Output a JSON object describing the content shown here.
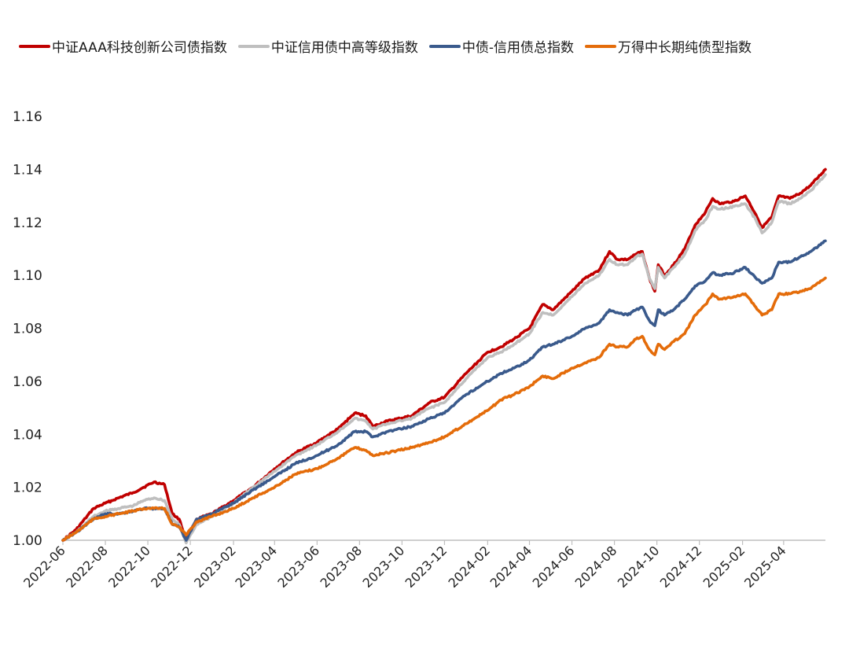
{
  "chart_data": {
    "type": "line",
    "title": "",
    "xlabel": "",
    "ylabel": "",
    "ylim": [
      1.0,
      1.16
    ],
    "yticks": [
      "1.00",
      "1.02",
      "1.04",
      "1.06",
      "1.08",
      "1.10",
      "1.12",
      "1.14",
      "1.16"
    ],
    "xlim": [
      "2022-06",
      "2025-05-31"
    ],
    "xticks": [
      "2022-06",
      "2022-08",
      "2022-10",
      "2022-12",
      "2023-02",
      "2023-04",
      "2023-06",
      "2023-08",
      "2023-10",
      "2023-12",
      "2024-02",
      "2024-04",
      "2024-06",
      "2024-08",
      "2024-10",
      "2024-12",
      "2025-02",
      "2025-04"
    ],
    "grid": false,
    "legend_position": "top",
    "series": [
      {
        "name": "中证AAA科技创新公司债指数",
        "color": "#C00000",
        "points": [
          [
            "2022-06-01",
            1.0
          ],
          [
            "2022-06-20",
            1.004
          ],
          [
            "2022-07-15",
            1.012
          ],
          [
            "2022-08-01",
            1.014
          ],
          [
            "2022-08-20",
            1.016
          ],
          [
            "2022-09-10",
            1.018
          ],
          [
            "2022-09-25",
            1.02
          ],
          [
            "2022-10-10",
            1.022
          ],
          [
            "2022-10-25",
            1.021
          ],
          [
            "2022-11-05",
            1.01
          ],
          [
            "2022-11-15",
            1.008
          ],
          [
            "2022-11-25",
            1.0
          ],
          [
            "2022-12-10",
            1.008
          ],
          [
            "2023-01-01",
            1.01
          ],
          [
            "2023-02-01",
            1.015
          ],
          [
            "2023-03-01",
            1.02
          ],
          [
            "2023-04-01",
            1.027
          ],
          [
            "2023-05-01",
            1.033
          ],
          [
            "2023-06-01",
            1.037
          ],
          [
            "2023-07-01",
            1.042
          ],
          [
            "2023-07-25",
            1.048
          ],
          [
            "2023-08-10",
            1.047
          ],
          [
            "2023-08-20",
            1.043
          ],
          [
            "2023-09-10",
            1.045
          ],
          [
            "2023-10-15",
            1.047
          ],
          [
            "2023-11-10",
            1.052
          ],
          [
            "2023-12-01",
            1.054
          ],
          [
            "2024-01-01",
            1.063
          ],
          [
            "2024-02-01",
            1.071
          ],
          [
            "2024-02-20",
            1.073
          ],
          [
            "2024-03-10",
            1.076
          ],
          [
            "2024-04-01",
            1.08
          ],
          [
            "2024-04-20",
            1.089
          ],
          [
            "2024-05-05",
            1.087
          ],
          [
            "2024-06-01",
            1.094
          ],
          [
            "2024-06-20",
            1.099
          ],
          [
            "2024-07-10",
            1.102
          ],
          [
            "2024-07-25",
            1.109
          ],
          [
            "2024-08-05",
            1.106
          ],
          [
            "2024-08-20",
            1.106
          ],
          [
            "2024-09-01",
            1.108
          ],
          [
            "2024-09-10",
            1.109
          ],
          [
            "2024-09-20",
            1.099
          ],
          [
            "2024-09-28",
            1.094
          ],
          [
            "2024-10-03",
            1.104
          ],
          [
            "2024-10-12",
            1.1
          ],
          [
            "2024-10-25",
            1.104
          ],
          [
            "2024-11-10",
            1.11
          ],
          [
            "2024-11-25",
            1.119
          ],
          [
            "2024-12-10",
            1.124
          ],
          [
            "2024-12-20",
            1.129
          ],
          [
            "2024-12-30",
            1.127
          ],
          [
            "2025-01-20",
            1.128
          ],
          [
            "2025-02-05",
            1.13
          ],
          [
            "2025-02-20",
            1.123
          ],
          [
            "2025-03-01",
            1.118
          ],
          [
            "2025-03-15",
            1.122
          ],
          [
            "2025-03-25",
            1.13
          ],
          [
            "2025-04-10",
            1.129
          ],
          [
            "2025-04-25",
            1.131
          ],
          [
            "2025-05-10",
            1.134
          ],
          [
            "2025-05-31",
            1.14
          ]
        ]
      },
      {
        "name": "中证信用债中高等级指数",
        "color": "#BFBFBF",
        "points": [
          [
            "2022-06-01",
            1.0
          ],
          [
            "2022-06-20",
            1.003
          ],
          [
            "2022-07-15",
            1.009
          ],
          [
            "2022-08-01",
            1.011
          ],
          [
            "2022-08-20",
            1.012
          ],
          [
            "2022-09-10",
            1.013
          ],
          [
            "2022-09-25",
            1.015
          ],
          [
            "2022-10-10",
            1.016
          ],
          [
            "2022-10-25",
            1.015
          ],
          [
            "2022-11-05",
            1.008
          ],
          [
            "2022-11-15",
            1.006
          ],
          [
            "2022-11-25",
            0.999
          ],
          [
            "2022-12-10",
            1.006
          ],
          [
            "2023-01-01",
            1.009
          ],
          [
            "2023-02-01",
            1.014
          ],
          [
            "2023-03-01",
            1.02
          ],
          [
            "2023-04-01",
            1.026
          ],
          [
            "2023-05-01",
            1.032
          ],
          [
            "2023-06-01",
            1.036
          ],
          [
            "2023-07-01",
            1.041
          ],
          [
            "2023-07-25",
            1.046
          ],
          [
            "2023-08-10",
            1.045
          ],
          [
            "2023-08-20",
            1.042
          ],
          [
            "2023-09-10",
            1.044
          ],
          [
            "2023-10-15",
            1.046
          ],
          [
            "2023-11-10",
            1.05
          ],
          [
            "2023-12-01",
            1.052
          ],
          [
            "2024-01-01",
            1.061
          ],
          [
            "2024-02-01",
            1.069
          ],
          [
            "2024-02-20",
            1.071
          ],
          [
            "2024-03-10",
            1.074
          ],
          [
            "2024-04-01",
            1.078
          ],
          [
            "2024-04-20",
            1.086
          ],
          [
            "2024-05-05",
            1.085
          ],
          [
            "2024-06-01",
            1.092
          ],
          [
            "2024-06-20",
            1.097
          ],
          [
            "2024-07-10",
            1.1
          ],
          [
            "2024-07-25",
            1.106
          ],
          [
            "2024-08-05",
            1.104
          ],
          [
            "2024-08-20",
            1.104
          ],
          [
            "2024-09-01",
            1.107
          ],
          [
            "2024-09-10",
            1.108
          ],
          [
            "2024-09-20",
            1.099
          ],
          [
            "2024-09-28",
            1.095
          ],
          [
            "2024-10-03",
            1.103
          ],
          [
            "2024-10-12",
            1.099
          ],
          [
            "2024-10-25",
            1.103
          ],
          [
            "2024-11-10",
            1.108
          ],
          [
            "2024-11-25",
            1.117
          ],
          [
            "2024-12-10",
            1.121
          ],
          [
            "2024-12-20",
            1.126
          ],
          [
            "2024-12-30",
            1.125
          ],
          [
            "2025-01-20",
            1.126
          ],
          [
            "2025-02-05",
            1.127
          ],
          [
            "2025-02-20",
            1.121
          ],
          [
            "2025-03-01",
            1.116
          ],
          [
            "2025-03-15",
            1.12
          ],
          [
            "2025-03-25",
            1.128
          ],
          [
            "2025-04-10",
            1.127
          ],
          [
            "2025-04-25",
            1.129
          ],
          [
            "2025-05-10",
            1.132
          ],
          [
            "2025-05-31",
            1.138
          ]
        ]
      },
      {
        "name": "中债-信用债总指数",
        "color": "#3A5A8C",
        "points": [
          [
            "2022-06-01",
            1.0
          ],
          [
            "2022-06-20",
            1.003
          ],
          [
            "2022-07-15",
            1.008
          ],
          [
            "2022-08-01",
            1.01
          ],
          [
            "2022-08-20",
            1.01
          ],
          [
            "2022-09-10",
            1.011
          ],
          [
            "2022-09-25",
            1.012
          ],
          [
            "2022-10-10",
            1.012
          ],
          [
            "2022-10-25",
            1.012
          ],
          [
            "2022-11-05",
            1.006
          ],
          [
            "2022-11-15",
            1.005
          ],
          [
            "2022-11-25",
            1.0
          ],
          [
            "2022-12-10",
            1.008
          ],
          [
            "2023-01-01",
            1.01
          ],
          [
            "2023-02-01",
            1.014
          ],
          [
            "2023-03-01",
            1.019
          ],
          [
            "2023-04-01",
            1.024
          ],
          [
            "2023-05-01",
            1.029
          ],
          [
            "2023-06-01",
            1.032
          ],
          [
            "2023-07-01",
            1.036
          ],
          [
            "2023-07-25",
            1.041
          ],
          [
            "2023-08-10",
            1.041
          ],
          [
            "2023-08-20",
            1.039
          ],
          [
            "2023-09-10",
            1.041
          ],
          [
            "2023-10-15",
            1.043
          ],
          [
            "2023-11-10",
            1.046
          ],
          [
            "2023-12-01",
            1.048
          ],
          [
            "2024-01-01",
            1.055
          ],
          [
            "2024-02-01",
            1.06
          ],
          [
            "2024-02-20",
            1.063
          ],
          [
            "2024-03-10",
            1.065
          ],
          [
            "2024-04-01",
            1.068
          ],
          [
            "2024-04-20",
            1.073
          ],
          [
            "2024-05-05",
            1.074
          ],
          [
            "2024-06-01",
            1.077
          ],
          [
            "2024-06-20",
            1.08
          ],
          [
            "2024-07-10",
            1.082
          ],
          [
            "2024-07-25",
            1.087
          ],
          [
            "2024-08-05",
            1.086
          ],
          [
            "2024-08-20",
            1.085
          ],
          [
            "2024-09-01",
            1.087
          ],
          [
            "2024-09-10",
            1.088
          ],
          [
            "2024-09-20",
            1.083
          ],
          [
            "2024-09-28",
            1.081
          ],
          [
            "2024-10-03",
            1.087
          ],
          [
            "2024-10-12",
            1.085
          ],
          [
            "2024-10-25",
            1.087
          ],
          [
            "2024-11-10",
            1.091
          ],
          [
            "2024-11-25",
            1.096
          ],
          [
            "2024-12-10",
            1.098
          ],
          [
            "2024-12-20",
            1.101
          ],
          [
            "2024-12-30",
            1.1
          ],
          [
            "2025-01-20",
            1.101
          ],
          [
            "2025-02-05",
            1.103
          ],
          [
            "2025-02-20",
            1.099
          ],
          [
            "2025-03-01",
            1.097
          ],
          [
            "2025-03-15",
            1.099
          ],
          [
            "2025-03-25",
            1.105
          ],
          [
            "2025-04-10",
            1.105
          ],
          [
            "2025-04-25",
            1.107
          ],
          [
            "2025-05-10",
            1.109
          ],
          [
            "2025-05-31",
            1.113
          ]
        ]
      },
      {
        "name": "万得中长期纯债型指数",
        "color": "#E46C0A",
        "points": [
          [
            "2022-06-01",
            1.0
          ],
          [
            "2022-06-20",
            1.003
          ],
          [
            "2022-07-15",
            1.008
          ],
          [
            "2022-08-01",
            1.009
          ],
          [
            "2022-08-20",
            1.01
          ],
          [
            "2022-09-10",
            1.011
          ],
          [
            "2022-09-25",
            1.012
          ],
          [
            "2022-10-10",
            1.012
          ],
          [
            "2022-10-25",
            1.012
          ],
          [
            "2022-11-05",
            1.006
          ],
          [
            "2022-11-15",
            1.005
          ],
          [
            "2022-11-25",
            1.002
          ],
          [
            "2022-12-10",
            1.007
          ],
          [
            "2023-01-01",
            1.009
          ],
          [
            "2023-02-01",
            1.012
          ],
          [
            "2023-03-01",
            1.016
          ],
          [
            "2023-04-01",
            1.02
          ],
          [
            "2023-05-01",
            1.025
          ],
          [
            "2023-06-01",
            1.027
          ],
          [
            "2023-07-01",
            1.031
          ],
          [
            "2023-07-25",
            1.035
          ],
          [
            "2023-08-10",
            1.034
          ],
          [
            "2023-08-20",
            1.032
          ],
          [
            "2023-09-10",
            1.033
          ],
          [
            "2023-10-15",
            1.035
          ],
          [
            "2023-11-10",
            1.037
          ],
          [
            "2023-12-01",
            1.039
          ],
          [
            "2024-01-01",
            1.044
          ],
          [
            "2024-02-01",
            1.049
          ],
          [
            "2024-02-20",
            1.053
          ],
          [
            "2024-03-10",
            1.055
          ],
          [
            "2024-04-01",
            1.058
          ],
          [
            "2024-04-20",
            1.062
          ],
          [
            "2024-05-05",
            1.061
          ],
          [
            "2024-06-01",
            1.065
          ],
          [
            "2024-06-20",
            1.067
          ],
          [
            "2024-07-10",
            1.069
          ],
          [
            "2024-07-25",
            1.074
          ],
          [
            "2024-08-05",
            1.073
          ],
          [
            "2024-08-20",
            1.073
          ],
          [
            "2024-09-01",
            1.076
          ],
          [
            "2024-09-10",
            1.077
          ],
          [
            "2024-09-20",
            1.072
          ],
          [
            "2024-09-28",
            1.07
          ],
          [
            "2024-10-03",
            1.074
          ],
          [
            "2024-10-12",
            1.072
          ],
          [
            "2024-10-25",
            1.075
          ],
          [
            "2024-11-10",
            1.078
          ],
          [
            "2024-11-25",
            1.085
          ],
          [
            "2024-12-10",
            1.089
          ],
          [
            "2024-12-20",
            1.093
          ],
          [
            "2024-12-30",
            1.091
          ],
          [
            "2025-01-20",
            1.092
          ],
          [
            "2025-02-05",
            1.093
          ],
          [
            "2025-02-20",
            1.088
          ],
          [
            "2025-03-01",
            1.085
          ],
          [
            "2025-03-15",
            1.087
          ],
          [
            "2025-03-25",
            1.093
          ],
          [
            "2025-04-10",
            1.093
          ],
          [
            "2025-04-25",
            1.094
          ],
          [
            "2025-05-10",
            1.095
          ],
          [
            "2025-05-31",
            1.099
          ]
        ]
      }
    ]
  }
}
